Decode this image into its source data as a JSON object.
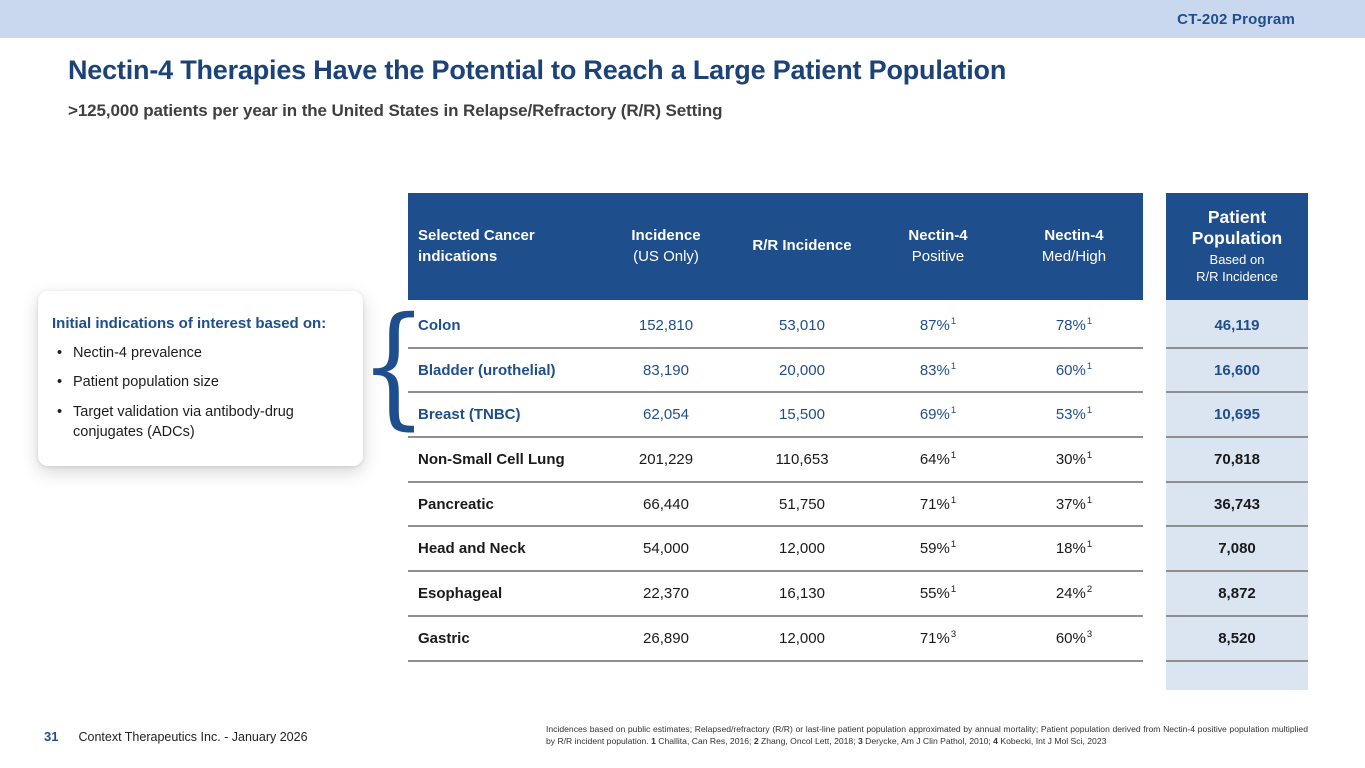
{
  "banner": {
    "program_label": "CT-202 Program"
  },
  "header": {
    "title": "Nectin-4 Therapies Have the Potential to Reach a Large Patient Population",
    "subtitle": ">125,000 patients per year in the United States in Relapse/Refractory (R/R) Setting"
  },
  "callout": {
    "heading": "Initial indications of interest based on:",
    "bullets": [
      "Nectin-4 prevalence",
      "Patient population size",
      "Target validation via antibody-drug conjugates (ADCs)"
    ]
  },
  "decorations": {
    "brace_glyph": "{"
  },
  "table": {
    "header": {
      "indications": "Selected Cancer indications",
      "incidence_line1": "Incidence",
      "incidence_line2": "(US Only)",
      "rr": "R/R Incidence",
      "np_line1": "Nectin-4",
      "np_line2": "Positive",
      "mh_line1": "Nectin-4",
      "mh_line2": "Med/High"
    },
    "rows": [
      {
        "indication": "Colon",
        "incidence": "152,810",
        "rr_incidence": "53,010",
        "nectin4_positive": "87%",
        "np_ref": "1",
        "nectin4_medhigh": "78%",
        "mh_ref": "1",
        "patient_population": "46,119",
        "highlight": true
      },
      {
        "indication": "Bladder (urothelial)",
        "incidence": "83,190",
        "rr_incidence": "20,000",
        "nectin4_positive": "83%",
        "np_ref": "1",
        "nectin4_medhigh": "60%",
        "mh_ref": "1",
        "patient_population": "16,600",
        "highlight": true
      },
      {
        "indication": "Breast (TNBC)",
        "incidence": "62,054",
        "rr_incidence": "15,500",
        "nectin4_positive": "69%",
        "np_ref": "1",
        "nectin4_medhigh": "53%",
        "mh_ref": "1",
        "patient_population": "10,695",
        "highlight": true
      },
      {
        "indication": "Non-Small Cell Lung",
        "incidence": "201,229",
        "rr_incidence": "110,653",
        "nectin4_positive": "64%",
        "np_ref": "1",
        "nectin4_medhigh": "30%",
        "mh_ref": "1",
        "patient_population": "70,818",
        "highlight": false
      },
      {
        "indication": "Pancreatic",
        "incidence": "66,440",
        "rr_incidence": "51,750",
        "nectin4_positive": "71%",
        "np_ref": "1",
        "nectin4_medhigh": "37%",
        "mh_ref": "1",
        "patient_population": "36,743",
        "highlight": false
      },
      {
        "indication": "Head and Neck",
        "incidence": "54,000",
        "rr_incidence": "12,000",
        "nectin4_positive": "59%",
        "np_ref": "1",
        "nectin4_medhigh": "18%",
        "mh_ref": "1",
        "patient_population": "7,080",
        "highlight": false
      },
      {
        "indication": "Esophageal",
        "incidence": "22,370",
        "rr_incidence": "16,130",
        "nectin4_positive": "55%",
        "np_ref": "1",
        "nectin4_medhigh": "24%",
        "mh_ref": "2",
        "patient_population": "8,872",
        "highlight": false
      },
      {
        "indication": "Gastric",
        "incidence": "26,890",
        "rr_incidence": "12,000",
        "nectin4_positive": "71%",
        "np_ref": "3",
        "nectin4_medhigh": "60%",
        "mh_ref": "3",
        "patient_population": "8,520",
        "highlight": false
      }
    ]
  },
  "pp_column": {
    "title": "Patient Population",
    "subtitle1": "Based on",
    "subtitle2": "R/R Incidence"
  },
  "footer": {
    "page_number": "31",
    "company": "Context Therapeutics Inc. - January 2026",
    "footnote_segments": [
      {
        "text": "Incidences based on public estimates; Relapsed/refractory (R/R) or last-line patient population approximated by annual mortality; Patient population derived from Nectin-4 positive population multiplied by R/R incident population. ",
        "bold": false
      },
      {
        "text": "1",
        "bold": true
      },
      {
        "text": " Challita, Can Res, 2016; ",
        "bold": false
      },
      {
        "text": "2",
        "bold": true
      },
      {
        "text": " Zhang, Oncol Lett, 2018; ",
        "bold": false
      },
      {
        "text": "3",
        "bold": true
      },
      {
        "text": " Derycke, Am J Clin Pathol, 2010; ",
        "bold": false
      },
      {
        "text": "4",
        "bold": true
      },
      {
        "text": " Kobecki, Int J Mol Sci, 2023",
        "bold": false
      }
    ]
  },
  "colors": {
    "accent_blue": "#1f4e8c",
    "banner_bg": "#c9d8ee",
    "pp_column_bg": "#dbe4f1",
    "separator_gray": "#8f8f8f"
  }
}
